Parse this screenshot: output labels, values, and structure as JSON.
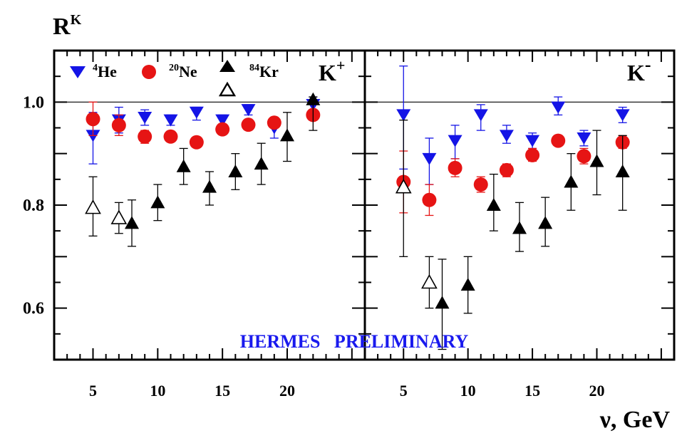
{
  "colors": {
    "he": "#1414e6",
    "ne": "#e61414",
    "kr": "#000000",
    "watermark": "#1a1aee"
  },
  "chart_data": [
    {
      "type": "scatter",
      "panel_label": "K",
      "panel_label_sup": "+",
      "ylabel": "R",
      "ylabel_sup": "K",
      "ylim": [
        0.5,
        1.1
      ],
      "xlim": [
        2,
        26
      ],
      "yticks": [
        "0.6",
        "0.8",
        "1.0"
      ],
      "xticks": [
        "5",
        "10",
        "15",
        "20"
      ],
      "reference_line": 1.0,
      "series": [
        {
          "name": "He",
          "name_sup": "4",
          "marker": "triangle-down",
          "color": "#1414e6",
          "points": [
            {
              "x": 5,
              "y": 0.935,
              "lo": 0.88,
              "hi": 0.98
            },
            {
              "x": 7,
              "y": 0.965,
              "lo": 0.94,
              "hi": 0.99
            },
            {
              "x": 9,
              "y": 0.97,
              "lo": 0.955,
              "hi": 0.985
            },
            {
              "x": 11,
              "y": 0.965,
              "lo": 0.955,
              "hi": 0.975
            },
            {
              "x": 13,
              "y": 0.98,
              "lo": 0.965,
              "hi": 0.99
            },
            {
              "x": 15,
              "y": 0.965,
              "lo": 0.955,
              "hi": 0.975
            },
            {
              "x": 17,
              "y": 0.985,
              "lo": 0.975,
              "hi": 0.995
            },
            {
              "x": 19,
              "y": 0.95,
              "lo": 0.93,
              "hi": 0.97
            },
            {
              "x": 22,
              "y": 0.995,
              "lo": 0.98,
              "hi": 1.01
            }
          ]
        },
        {
          "name": "Ne",
          "name_sup": "20",
          "marker": "circle",
          "color": "#e61414",
          "points": [
            {
              "x": 5,
              "y": 0.967,
              "lo": 0.935,
              "hi": 1.0
            },
            {
              "x": 7,
              "y": 0.955,
              "lo": 0.935,
              "hi": 0.975
            },
            {
              "x": 9,
              "y": 0.933,
              "lo": 0.92,
              "hi": 0.945
            },
            {
              "x": 11,
              "y": 0.933,
              "lo": 0.923,
              "hi": 0.943
            },
            {
              "x": 13,
              "y": 0.922,
              "lo": 0.915,
              "hi": 0.93
            },
            {
              "x": 15,
              "y": 0.947,
              "lo": 0.94,
              "hi": 0.955
            },
            {
              "x": 17,
              "y": 0.956,
              "lo": 0.948,
              "hi": 0.965
            },
            {
              "x": 19,
              "y": 0.96,
              "lo": 0.95,
              "hi": 0.97
            },
            {
              "x": 22,
              "y": 0.975,
              "lo": 0.965,
              "hi": 0.985
            }
          ]
        },
        {
          "name": "Kr",
          "name_sup": "84",
          "marker": "triangle-up",
          "color": "#000000",
          "points": [
            {
              "x": 8,
              "y": 0.765,
              "lo": 0.72,
              "hi": 0.81
            },
            {
              "x": 10,
              "y": 0.805,
              "lo": 0.77,
              "hi": 0.84
            },
            {
              "x": 12,
              "y": 0.875,
              "lo": 0.84,
              "hi": 0.91
            },
            {
              "x": 14,
              "y": 0.835,
              "lo": 0.8,
              "hi": 0.865
            },
            {
              "x": 16,
              "y": 0.865,
              "lo": 0.83,
              "hi": 0.9
            },
            {
              "x": 18,
              "y": 0.88,
              "lo": 0.84,
              "hi": 0.92
            },
            {
              "x": 20,
              "y": 0.935,
              "lo": 0.885,
              "hi": 0.98
            },
            {
              "x": 22,
              "y": 1.005,
              "lo": 0.945,
              "hi": 1.01
            }
          ]
        },
        {
          "name": "",
          "marker": "triangle-up-open",
          "color": "#000000",
          "points": [
            {
              "x": 5,
              "y": 0.795,
              "lo": 0.74,
              "hi": 0.855
            },
            {
              "x": 7,
              "y": 0.775,
              "lo": 0.745,
              "hi": 0.805
            }
          ]
        }
      ]
    },
    {
      "type": "scatter",
      "panel_label": "K",
      "panel_label_sup": "-",
      "ylim": [
        0.5,
        1.1
      ],
      "xlim": [
        2,
        26
      ],
      "xticks": [
        "5",
        "10",
        "15",
        "20"
      ],
      "xlabel": "ν, GeV",
      "reference_line": 1.0,
      "series": [
        {
          "name": "He",
          "marker": "triangle-down",
          "color": "#1414e6",
          "points": [
            {
              "x": 5,
              "y": 0.975,
              "lo": 0.87,
              "hi": 1.07
            },
            {
              "x": 7,
              "y": 0.89,
              "lo": 0.84,
              "hi": 0.93
            },
            {
              "x": 9,
              "y": 0.925,
              "lo": 0.89,
              "hi": 0.955
            },
            {
              "x": 11,
              "y": 0.975,
              "lo": 0.945,
              "hi": 0.995
            },
            {
              "x": 13,
              "y": 0.935,
              "lo": 0.92,
              "hi": 0.955
            },
            {
              "x": 15,
              "y": 0.925,
              "lo": 0.91,
              "hi": 0.94
            },
            {
              "x": 17,
              "y": 0.99,
              "lo": 0.975,
              "hi": 1.01
            },
            {
              "x": 19,
              "y": 0.93,
              "lo": 0.915,
              "hi": 0.945
            },
            {
              "x": 22,
              "y": 0.975,
              "lo": 0.96,
              "hi": 0.99
            }
          ]
        },
        {
          "name": "Ne",
          "marker": "circle",
          "color": "#e61414",
          "points": [
            {
              "x": 5,
              "y": 0.845,
              "lo": 0.785,
              "hi": 0.905
            },
            {
              "x": 7,
              "y": 0.81,
              "lo": 0.78,
              "hi": 0.84
            },
            {
              "x": 9,
              "y": 0.872,
              "lo": 0.855,
              "hi": 0.89
            },
            {
              "x": 11,
              "y": 0.84,
              "lo": 0.825,
              "hi": 0.855
            },
            {
              "x": 13,
              "y": 0.868,
              "lo": 0.855,
              "hi": 0.88
            },
            {
              "x": 15,
              "y": 0.897,
              "lo": 0.885,
              "hi": 0.91
            },
            {
              "x": 17,
              "y": 0.925,
              "lo": 0.915,
              "hi": 0.935
            },
            {
              "x": 19,
              "y": 0.895,
              "lo": 0.88,
              "hi": 0.91
            },
            {
              "x": 22,
              "y": 0.922,
              "lo": 0.91,
              "hi": 0.935
            }
          ]
        },
        {
          "name": "Kr",
          "marker": "triangle-up",
          "color": "#000000",
          "points": [
            {
              "x": 8,
              "y": 0.61,
              "lo": 0.52,
              "hi": 0.695
            },
            {
              "x": 10,
              "y": 0.645,
              "lo": 0.59,
              "hi": 0.7
            },
            {
              "x": 12,
              "y": 0.8,
              "lo": 0.75,
              "hi": 0.86
            },
            {
              "x": 14,
              "y": 0.755,
              "lo": 0.71,
              "hi": 0.805
            },
            {
              "x": 16,
              "y": 0.765,
              "lo": 0.72,
              "hi": 0.815
            },
            {
              "x": 18,
              "y": 0.845,
              "lo": 0.79,
              "hi": 0.9
            },
            {
              "x": 20,
              "y": 0.885,
              "lo": 0.82,
              "hi": 0.945
            },
            {
              "x": 22,
              "y": 0.865,
              "lo": 0.79,
              "hi": 0.935
            }
          ]
        },
        {
          "name": "",
          "marker": "triangle-up-open",
          "color": "#000000",
          "points": [
            {
              "x": 5,
              "y": 0.835,
              "lo": 0.7,
              "hi": 0.965
            },
            {
              "x": 7,
              "y": 0.65,
              "lo": 0.6,
              "hi": 0.7
            }
          ]
        }
      ]
    }
  ],
  "watermark": "HERMES   PRELIMINARY"
}
